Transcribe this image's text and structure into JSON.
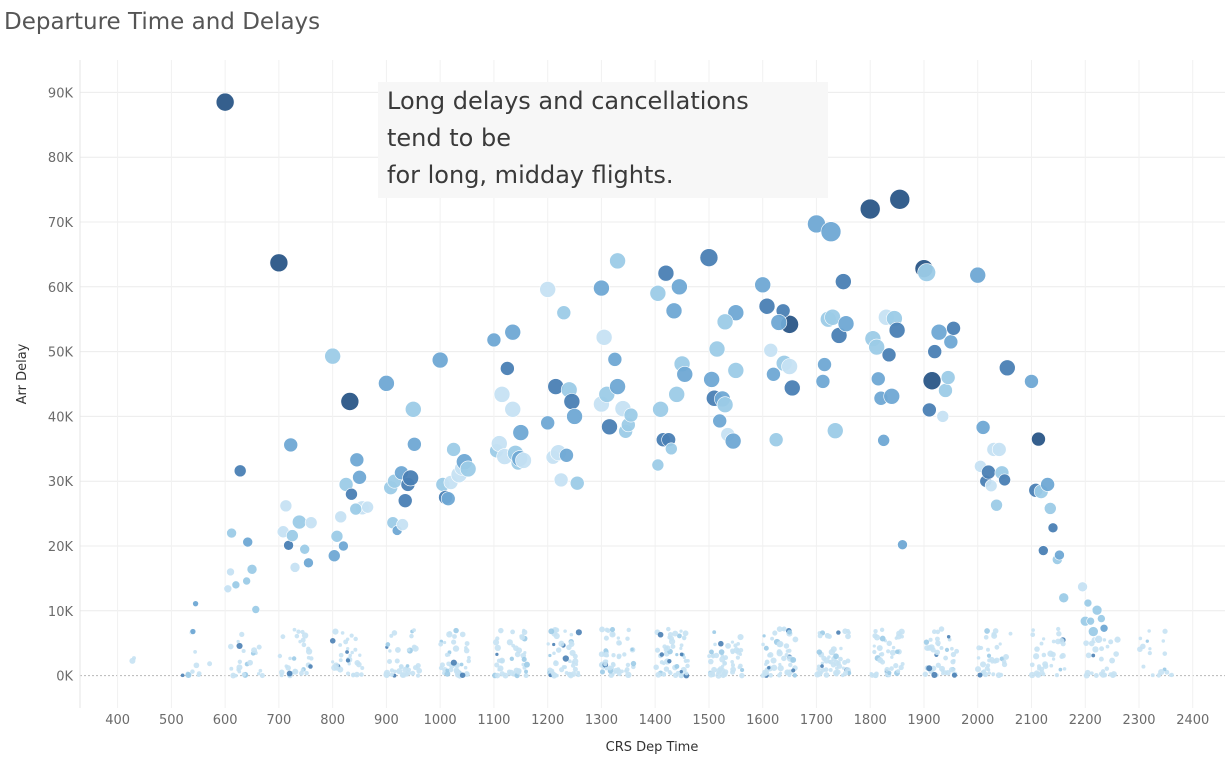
{
  "title": "Departure Time and Delays",
  "annotation": {
    "lines": [
      "Long delays and cancellations",
      "tend to be",
      "for long, midday flights."
    ]
  },
  "chart_data": {
    "type": "scatter",
    "title": "Departure Time and Delays",
    "xlabel": "CRS Dep Time",
    "ylabel": "Arr Delay",
    "xlim": [
      330,
      2460
    ],
    "ylim": [
      -5000,
      95000
    ],
    "x_ticks": [
      400,
      500,
      600,
      700,
      800,
      900,
      1000,
      1100,
      1200,
      1300,
      1400,
      1500,
      1600,
      1700,
      1800,
      1900,
      2000,
      2100,
      2200,
      2300,
      2400
    ],
    "x_tick_labels": [
      "400",
      "500",
      "600",
      "700",
      "800",
      "900",
      "1000",
      "1100",
      "1200",
      "1300",
      "1400",
      "1500",
      "1600",
      "1700",
      "1800",
      "1900",
      "2000",
      "2100",
      "2200",
      "2300",
      "2400"
    ],
    "y_ticks": [
      0,
      10000,
      20000,
      30000,
      40000,
      50000,
      60000,
      70000,
      80000,
      90000
    ],
    "y_tick_labels": [
      "0K",
      "10K",
      "20K",
      "30K",
      "40K",
      "50K",
      "60K",
      "70K",
      "80K",
      "90K"
    ],
    "grid": true,
    "color_scale": [
      "#c6e2f3",
      "#9ccbe7",
      "#6fa8d4",
      "#4a80b4",
      "#2a5687"
    ],
    "points": [
      [
        600,
        88500,
        9,
        4
      ],
      [
        700,
        63700,
        9,
        4
      ],
      [
        832,
        42300,
        9,
        4
      ],
      [
        1800,
        72000,
        10,
        4
      ],
      [
        1855,
        73500,
        10,
        4
      ],
      [
        1500,
        64500,
        9,
        3
      ],
      [
        1900,
        62800,
        9,
        4
      ],
      [
        1915,
        45500,
        9,
        4
      ],
      [
        1650,
        54200,
        9,
        4
      ],
      [
        1700,
        69700,
        9,
        2
      ],
      [
        1727,
        68500,
        10,
        2
      ],
      [
        1742,
        52500,
        8,
        3
      ],
      [
        1750,
        60800,
        8,
        3
      ],
      [
        1608,
        57000,
        8,
        3
      ],
      [
        1638,
        56300,
        7,
        3
      ],
      [
        1600,
        60300,
        8,
        2
      ],
      [
        1550,
        56000,
        8,
        2
      ],
      [
        1530,
        54600,
        8,
        1
      ],
      [
        1420,
        62100,
        8,
        3
      ],
      [
        1445,
        60000,
        8,
        2
      ],
      [
        1405,
        59000,
        8,
        1
      ],
      [
        1330,
        64000,
        8,
        1
      ],
      [
        1300,
        59800,
        8,
        2
      ],
      [
        1200,
        59600,
        8,
        0
      ],
      [
        1230,
        56000,
        7,
        1
      ],
      [
        1125,
        47400,
        7,
        3
      ],
      [
        1135,
        53000,
        8,
        2
      ],
      [
        1100,
        51800,
        7,
        2
      ],
      [
        1000,
        48700,
        8,
        2
      ],
      [
        900,
        45100,
        8,
        2
      ],
      [
        800,
        49300,
        8,
        1
      ],
      [
        722,
        35600,
        7,
        2
      ],
      [
        628,
        31600,
        6,
        3
      ],
      [
        612,
        22000,
        5,
        1
      ],
      [
        642,
        20600,
        5,
        2
      ],
      [
        650,
        16400,
        5,
        1
      ],
      [
        640,
        14600,
        4,
        1
      ],
      [
        620,
        14000,
        4,
        1
      ],
      [
        605,
        13400,
        4,
        0
      ],
      [
        610,
        16000,
        4,
        0
      ],
      [
        657,
        10200,
        4,
        1
      ],
      [
        545,
        11100,
        3,
        2
      ],
      [
        540,
        6800,
        3,
        2
      ],
      [
        713,
        26200,
        6,
        0
      ],
      [
        708,
        22200,
        6,
        0
      ],
      [
        718,
        20100,
        5,
        3
      ],
      [
        725,
        21600,
        6,
        1
      ],
      [
        738,
        23700,
        7,
        1
      ],
      [
        748,
        19500,
        5,
        1
      ],
      [
        755,
        17400,
        5,
        2
      ],
      [
        730,
        16700,
        5,
        0
      ],
      [
        760,
        23600,
        6,
        0
      ],
      [
        808,
        21500,
        6,
        1
      ],
      [
        803,
        18500,
        6,
        2
      ],
      [
        815,
        24500,
        6,
        0
      ],
      [
        820,
        20000,
        5,
        2
      ],
      [
        825,
        29500,
        7,
        1
      ],
      [
        835,
        28000,
        6,
        3
      ],
      [
        845,
        33300,
        7,
        2
      ],
      [
        850,
        30600,
        7,
        2
      ],
      [
        855,
        25900,
        7,
        0
      ],
      [
        843,
        25700,
        6,
        1
      ],
      [
        865,
        26000,
        6,
        0
      ],
      [
        908,
        29000,
        7,
        1
      ],
      [
        915,
        30000,
        7,
        1
      ],
      [
        912,
        23600,
        6,
        1
      ],
      [
        920,
        22400,
        5,
        2
      ],
      [
        928,
        31300,
        7,
        2
      ],
      [
        935,
        27000,
        7,
        3
      ],
      [
        930,
        23300,
        6,
        0
      ],
      [
        940,
        29500,
        7,
        3
      ],
      [
        945,
        30500,
        8,
        3
      ],
      [
        952,
        35700,
        7,
        2
      ],
      [
        950,
        41100,
        8,
        1
      ],
      [
        1005,
        29500,
        7,
        1
      ],
      [
        1010,
        27500,
        7,
        3
      ],
      [
        1015,
        27300,
        7,
        2
      ],
      [
        1025,
        34900,
        7,
        1
      ],
      [
        1020,
        29800,
        7,
        0
      ],
      [
        1035,
        31000,
        8,
        0
      ],
      [
        1040,
        32000,
        7,
        0
      ],
      [
        1045,
        33000,
        8,
        2
      ],
      [
        1052,
        31900,
        8,
        1
      ],
      [
        1105,
        34700,
        7,
        1
      ],
      [
        1110,
        35800,
        8,
        0
      ],
      [
        1115,
        43400,
        8,
        0
      ],
      [
        1120,
        33800,
        8,
        0
      ],
      [
        1135,
        41100,
        8,
        0
      ],
      [
        1140,
        34300,
        8,
        1
      ],
      [
        1145,
        32800,
        7,
        1
      ],
      [
        1150,
        37500,
        8,
        2
      ],
      [
        1148,
        33500,
        8,
        2
      ],
      [
        1155,
        33200,
        8,
        0
      ],
      [
        1200,
        39000,
        7,
        2
      ],
      [
        1210,
        33700,
        7,
        0
      ],
      [
        1215,
        44600,
        8,
        3
      ],
      [
        1220,
        34400,
        8,
        0
      ],
      [
        1235,
        34000,
        7,
        2
      ],
      [
        1240,
        44100,
        8,
        1
      ],
      [
        1245,
        42300,
        8,
        3
      ],
      [
        1250,
        40000,
        8,
        2
      ],
      [
        1255,
        29700,
        7,
        1
      ],
      [
        1225,
        30200,
        7,
        0
      ],
      [
        1300,
        41900,
        8,
        0
      ],
      [
        1305,
        52200,
        8,
        0
      ],
      [
        1310,
        43400,
        8,
        1
      ],
      [
        1315,
        38400,
        8,
        3
      ],
      [
        1325,
        48800,
        7,
        2
      ],
      [
        1330,
        44600,
        8,
        2
      ],
      [
        1340,
        41200,
        8,
        0
      ],
      [
        1345,
        37700,
        7,
        1
      ],
      [
        1350,
        38700,
        7,
        1
      ],
      [
        1355,
        40200,
        7,
        1
      ],
      [
        1405,
        32500,
        6,
        1
      ],
      [
        1410,
        41100,
        8,
        1
      ],
      [
        1415,
        36400,
        7,
        3
      ],
      [
        1425,
        36400,
        7,
        3
      ],
      [
        1430,
        35000,
        6,
        1
      ],
      [
        1435,
        56300,
        8,
        2
      ],
      [
        1440,
        43400,
        8,
        1
      ],
      [
        1450,
        48100,
        8,
        1
      ],
      [
        1455,
        46500,
        8,
        2
      ],
      [
        1505,
        45700,
        8,
        2
      ],
      [
        1510,
        42800,
        8,
        3
      ],
      [
        1515,
        50400,
        8,
        1
      ],
      [
        1520,
        39300,
        7,
        2
      ],
      [
        1525,
        42700,
        8,
        2
      ],
      [
        1530,
        41800,
        8,
        1
      ],
      [
        1535,
        37200,
        7,
        0
      ],
      [
        1545,
        36200,
        8,
        2
      ],
      [
        1550,
        47100,
        8,
        1
      ],
      [
        1615,
        50200,
        7,
        0
      ],
      [
        1620,
        46500,
        7,
        2
      ],
      [
        1625,
        36400,
        7,
        1
      ],
      [
        1630,
        54500,
        8,
        2
      ],
      [
        1640,
        48200,
        8,
        1
      ],
      [
        1650,
        47700,
        8,
        0
      ],
      [
        1655,
        44400,
        8,
        3
      ],
      [
        1712,
        45400,
        7,
        2
      ],
      [
        1715,
        48000,
        7,
        2
      ],
      [
        1722,
        55000,
        8,
        1
      ],
      [
        1730,
        55300,
        8,
        1
      ],
      [
        1735,
        37800,
        8,
        1
      ],
      [
        1755,
        54300,
        8,
        2
      ],
      [
        1805,
        52000,
        8,
        1
      ],
      [
        1812,
        50700,
        8,
        1
      ],
      [
        1815,
        45800,
        7,
        2
      ],
      [
        1820,
        42800,
        7,
        2
      ],
      [
        1825,
        36300,
        6,
        2
      ],
      [
        1830,
        55300,
        8,
        0
      ],
      [
        1835,
        49500,
        7,
        3
      ],
      [
        1840,
        43100,
        8,
        2
      ],
      [
        1845,
        55100,
        8,
        1
      ],
      [
        1850,
        53300,
        8,
        3
      ],
      [
        1860,
        20200,
        5,
        2
      ],
      [
        1905,
        62200,
        9,
        1
      ],
      [
        1910,
        41000,
        7,
        3
      ],
      [
        1920,
        50000,
        7,
        3
      ],
      [
        1928,
        53000,
        8,
        2
      ],
      [
        1935,
        40000,
        6,
        0
      ],
      [
        1940,
        44000,
        7,
        1
      ],
      [
        1945,
        46000,
        7,
        1
      ],
      [
        1950,
        51500,
        7,
        2
      ],
      [
        1955,
        53600,
        7,
        3
      ],
      [
        2000,
        61800,
        8,
        2
      ],
      [
        2005,
        32300,
        6,
        0
      ],
      [
        2010,
        38300,
        7,
        2
      ],
      [
        2015,
        30000,
        6,
        3
      ],
      [
        2020,
        31400,
        7,
        3
      ],
      [
        2025,
        29300,
        6,
        0
      ],
      [
        2030,
        34900,
        7,
        0
      ],
      [
        2035,
        26300,
        6,
        1
      ],
      [
        2040,
        34900,
        7,
        0
      ],
      [
        2045,
        31300,
        7,
        1
      ],
      [
        2050,
        30200,
        6,
        3
      ],
      [
        2055,
        47500,
        8,
        3
      ],
      [
        2100,
        45400,
        7,
        2
      ],
      [
        2108,
        28600,
        7,
        3
      ],
      [
        2113,
        36500,
        7,
        4
      ],
      [
        2118,
        28400,
        7,
        1
      ],
      [
        2122,
        19300,
        5,
        3
      ],
      [
        2130,
        29500,
        7,
        2
      ],
      [
        2135,
        25800,
        6,
        1
      ],
      [
        2140,
        22800,
        5,
        3
      ],
      [
        2148,
        17900,
        5,
        1
      ],
      [
        2152,
        18600,
        5,
        2
      ],
      [
        2160,
        12000,
        5,
        1
      ],
      [
        2195,
        13700,
        5,
        0
      ],
      [
        2200,
        8400,
        5,
        1
      ],
      [
        2205,
        11200,
        4,
        1
      ],
      [
        2210,
        8400,
        4,
        1
      ],
      [
        2215,
        6800,
        5,
        1
      ],
      [
        2222,
        10100,
        5,
        1
      ],
      [
        2225,
        5600,
        4,
        0
      ],
      [
        2230,
        8800,
        4,
        1
      ],
      [
        2235,
        7300,
        4,
        2
      ]
    ]
  }
}
